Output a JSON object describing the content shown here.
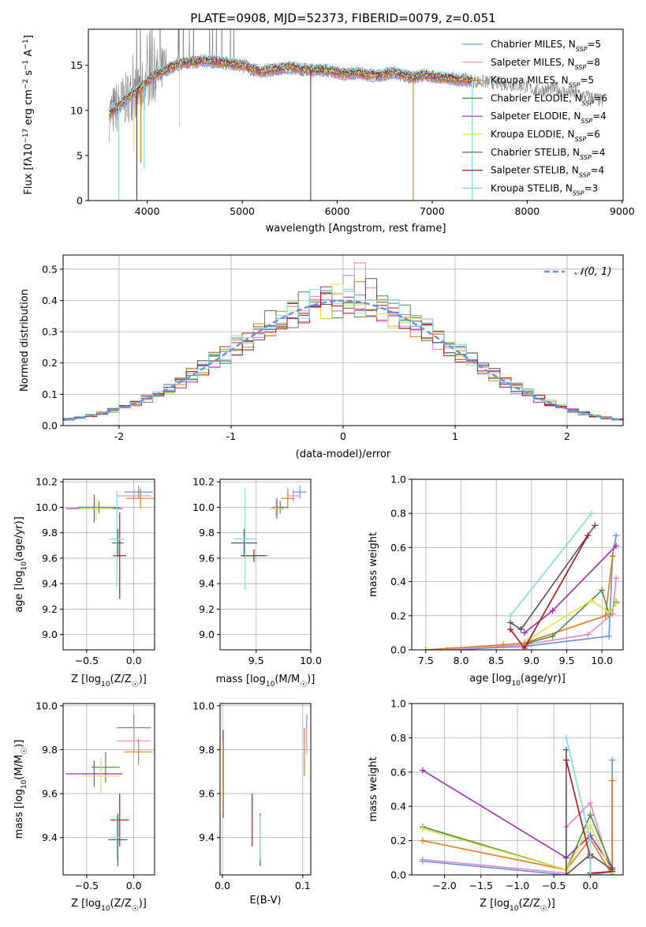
{
  "colors": {
    "Chabrier MILES": "#6a8fe0",
    "Salpeter MILES": "#e587c2",
    "Kroupa MILES": "#e07b1b",
    "Chabrier ELODIE": "#4f8a4a",
    "Salpeter ELODIE": "#9a2fb0",
    "Kroupa ELODIE": "#d9e347",
    "Chabrier STELIB": "#555555",
    "Salpeter STELIB": "#b0151c",
    "Kroupa STELIB": "#7fdde0",
    "gaussian": "#6a8fe0",
    "grid": "#b0b0b0",
    "spectrum_gray": "#808080"
  },
  "chart_data": [
    {
      "id": "spectrum",
      "type": "line",
      "title": "PLATE=0908, MJD=52373, FIBERID=0079, z=0.051",
      "xlabel": "wavelength [Angstrom, rest frame]",
      "ylabel": "Flux [fλ10⁻¹⁷ erg cm⁻² s⁻¹ A⁻¹]",
      "xlim": [
        3380,
        9010
      ],
      "ylim": [
        0,
        19
      ],
      "xticks": [
        4000,
        5000,
        6000,
        7000,
        8000,
        9000
      ],
      "yticks": [
        0,
        5,
        10,
        15
      ],
      "grid": false,
      "legend_position": "upper right",
      "legend": [
        {
          "label": "Chabrier MILES, N",
          "sub": "SSP",
          "tail": "=5",
          "series": "Chabrier MILES"
        },
        {
          "label": "Salpeter MILES, N",
          "sub": "SSP",
          "tail": "=8",
          "series": "Salpeter MILES"
        },
        {
          "label": "Kroupa MILES, N",
          "sub": "SSP",
          "tail": "=5",
          "series": "Kroupa MILES"
        },
        {
          "label": "Chabrier ELODIE, N",
          "sub": "SSP",
          "tail": "=6",
          "series": "Chabrier ELODIE"
        },
        {
          "label": "Salpeter ELODIE, N",
          "sub": "SSP",
          "tail": "=4",
          "series": "Salpeter ELODIE"
        },
        {
          "label": "Kroupa ELODIE, N",
          "sub": "SSP",
          "tail": "=6",
          "series": "Kroupa ELODIE"
        },
        {
          "label": "Chabrier STELIB, N",
          "sub": "SSP",
          "tail": "=4",
          "series": "Chabrier STELIB"
        },
        {
          "label": "Salpeter STELIB, N",
          "sub": "SSP",
          "tail": "=4",
          "series": "Salpeter STELIB"
        },
        {
          "label": "Kroupa STELIB, N",
          "sub": "SSP",
          "tail": "=3",
          "series": "Kroupa STELIB"
        }
      ],
      "continuum": {
        "x": [
          3600,
          3700,
          3800,
          3900,
          4000,
          4100,
          4200,
          4300,
          4400,
          4500,
          4600,
          4700,
          4800,
          4900,
          5000,
          5100,
          5200,
          5300,
          5400,
          5500,
          5600,
          5700,
          5800,
          5900,
          6000,
          6100,
          6200,
          6300,
          6400,
          6500,
          6600,
          6700,
          6800,
          6900,
          7000,
          7100,
          7200,
          7300,
          7400,
          7500,
          7600,
          7700,
          7800,
          7900,
          8000,
          8100,
          8200,
          8300,
          8400,
          8500,
          8600,
          8700,
          8800
        ],
        "y": [
          9.5,
          10.5,
          11.5,
          12.2,
          13.2,
          14.0,
          14.5,
          15.0,
          15.3,
          15.4,
          15.5,
          15.4,
          15.3,
          15.1,
          15.0,
          14.6,
          14.3,
          14.5,
          14.6,
          14.8,
          14.6,
          14.5,
          14.5,
          14.4,
          14.2,
          14.0,
          14.2,
          14.0,
          13.8,
          14.0,
          14.2,
          13.9,
          13.6,
          13.9,
          13.8,
          13.6,
          13.5,
          13.4,
          13.3,
          13.2,
          13.1,
          13.0,
          12.9,
          12.8,
          12.6,
          12.2,
          12.3,
          12.4,
          12.0,
          11.9,
          11.6,
          11.4,
          11.0
        ]
      },
      "model_range": [
        3600,
        7420
      ],
      "data_range": [
        3600,
        8800
      ],
      "absorption_features": [
        {
          "x": 3640,
          "y": 8.3
        },
        {
          "x": 3700,
          "y": 0
        },
        {
          "x": 3860,
          "y": 5.5
        },
        {
          "x": 3890,
          "y": 0
        },
        {
          "x": 3933,
          "y": 4.2
        },
        {
          "x": 3968,
          "y": 3.5
        },
        {
          "x": 4340,
          "y": 8.2
        },
        {
          "x": 5720,
          "y": 0
        },
        {
          "x": 6800,
          "y": 0
        },
        {
          "x": 7420,
          "y": 0
        }
      ]
    },
    {
      "id": "residuals",
      "type": "bar",
      "xlabel": "(data-model)/error",
      "ylabel": "Normed distribution",
      "xlim": [
        -2.5,
        2.5
      ],
      "ylim": [
        0,
        0.545
      ],
      "xticks": [
        -2,
        -1,
        0,
        1,
        2
      ],
      "yticks": [
        0.0,
        0.1,
        0.2,
        0.3,
        0.4,
        0.5
      ],
      "grid": true,
      "bin_width": 0.1,
      "bin_start": -2.5,
      "legend": [
        {
          "label": "𝒩(0, 1)",
          "series": "gaussian",
          "style": "dashed"
        }
      ],
      "histogram_peaks": [
        {
          "series": "Salpeter MILES",
          "x": 0.15,
          "y": 0.52
        },
        {
          "series": "Chabrier MILES",
          "x": 0.05,
          "y": 0.48
        },
        {
          "series": "Chabrier STELIB",
          "x": 0.25,
          "y": 0.47
        },
        {
          "series": "Kroupa MILES",
          "x": 0.15,
          "y": 0.46
        }
      ]
    },
    {
      "id": "age_vs_Z",
      "type": "scatter",
      "xlabel": "Z [log₁₀(Z/Z☉)]",
      "ylabel": "age  [log₁₀(age/yr)]",
      "xlim": [
        -0.75,
        0.22
      ],
      "ylim": [
        8.88,
        10.22
      ],
      "xticks": [
        -0.5,
        0.0
      ],
      "yticks": [
        9.0,
        9.2,
        9.4,
        9.6,
        9.8,
        10.0,
        10.2
      ],
      "grid": true,
      "points": [
        {
          "series": "Chabrier MILES",
          "x": 0.05,
          "xerr": 0.15,
          "y": 10.12,
          "yerr": 0.05
        },
        {
          "series": "Salpeter MILES",
          "x": 0.0,
          "xerr": 0.18,
          "y": 10.09,
          "yerr": 0.05
        },
        {
          "series": "Kroupa MILES",
          "x": 0.07,
          "xerr": 0.15,
          "y": 10.07,
          "yerr": 0.08
        },
        {
          "series": "Chabrier ELODIE",
          "x": -0.37,
          "xerr": 0.22,
          "y": 10.0,
          "yerr": 0.05
        },
        {
          "series": "Salpeter ELODIE",
          "x": -0.42,
          "xerr": 0.3,
          "y": 9.99,
          "yerr": 0.11
        },
        {
          "series": "Kroupa ELODIE",
          "x": -0.4,
          "xerr": 0.18,
          "y": 9.99,
          "yerr": 0.09
        },
        {
          "series": "Chabrier STELIB",
          "x": -0.17,
          "xerr": 0.06,
          "y": 9.72,
          "yerr": 0.11
        },
        {
          "series": "Salpeter STELIB",
          "x": -0.15,
          "xerr": 0.07,
          "y": 9.62,
          "yerr": 0.34
        },
        {
          "series": "Kroupa STELIB",
          "x": -0.18,
          "xerr": 0.08,
          "y": 9.75,
          "yerr": 0.38
        }
      ]
    },
    {
      "id": "age_vs_mass",
      "type": "scatter",
      "xlabel": "mass [log₁₀(M/M☉)]",
      "ylabel": "",
      "xlim": [
        9.17,
        10.0
      ],
      "ylim": [
        8.88,
        10.22
      ],
      "xticks": [
        9.5,
        10.0
      ],
      "yticks": [
        9.0,
        9.2,
        9.4,
        9.6,
        9.8,
        10.0,
        10.2
      ],
      "grid": true,
      "points": [
        {
          "series": "Chabrier MILES",
          "x": 9.9,
          "xerr": 0.06,
          "y": 10.12,
          "yerr": 0.05
        },
        {
          "series": "Salpeter MILES",
          "x": 9.84,
          "xerr": 0.06,
          "y": 10.09,
          "yerr": 0.05
        },
        {
          "series": "Kroupa MILES",
          "x": 9.79,
          "xerr": 0.06,
          "y": 10.07,
          "yerr": 0.08
        },
        {
          "series": "Chabrier ELODIE",
          "x": 9.72,
          "xerr": 0.07,
          "y": 10.0,
          "yerr": 0.05
        },
        {
          "series": "Salpeter ELODIE",
          "x": 9.69,
          "xerr": 0.06,
          "y": 9.99,
          "yerr": 0.08
        },
        {
          "series": "Kroupa ELODIE",
          "x": 9.68,
          "xerr": 0.06,
          "y": 9.99,
          "yerr": 0.06
        },
        {
          "series": "Chabrier STELIB",
          "x": 9.39,
          "xerr": 0.12,
          "y": 9.72,
          "yerr": 0.11
        },
        {
          "series": "Salpeter STELIB",
          "x": 9.48,
          "xerr": 0.12,
          "y": 9.62,
          "yerr": 0.05
        },
        {
          "series": "Kroupa STELIB",
          "x": 9.4,
          "xerr": 0.1,
          "y": 9.75,
          "yerr": 0.4
        }
      ]
    },
    {
      "id": "weight_vs_age",
      "type": "line",
      "xlabel": "age  [log₁₀(age/yr)]",
      "ylabel": "mass weight",
      "xlim": [
        7.3,
        10.3
      ],
      "ylim": [
        0,
        1.0
      ],
      "xticks": [
        7.5,
        8.0,
        8.5,
        9.0,
        9.5,
        10.0
      ],
      "yticks": [
        0.0,
        0.2,
        0.4,
        0.6,
        0.8,
        1.0
      ],
      "grid": true,
      "series": [
        {
          "name": "Chabrier MILES",
          "x": [
            7.8,
            8.9,
            10.1,
            10.15,
            10.2
          ],
          "y": [
            0.0,
            0.02,
            0.08,
            0.55,
            0.67
          ]
        },
        {
          "name": "Salpeter MILES",
          "x": [
            7.8,
            8.9,
            9.8,
            10.15,
            10.2
          ],
          "y": [
            0.0,
            0.03,
            0.09,
            0.21,
            0.42
          ]
        },
        {
          "name": "Kroupa MILES",
          "x": [
            7.5,
            8.6,
            8.9,
            10.05,
            10.15
          ],
          "y": [
            0.0,
            0.03,
            0.04,
            0.2,
            0.55
          ]
        },
        {
          "name": "Chabrier ELODIE",
          "x": [
            8.95,
            9.3,
            10.0,
            10.1,
            10.2
          ],
          "y": [
            0.04,
            0.08,
            0.35,
            0.21,
            0.28
          ]
        },
        {
          "name": "Salpeter ELODIE",
          "x": [
            8.9,
            9.3,
            10.2
          ],
          "y": [
            0.1,
            0.23,
            0.61
          ]
        },
        {
          "name": "Kroupa ELODIE",
          "x": [
            8.95,
            9.85,
            10.1,
            10.2
          ],
          "y": [
            0.06,
            0.29,
            0.22,
            0.27
          ]
        },
        {
          "name": "Chabrier STELIB",
          "x": [
            8.7,
            8.85,
            9.9
          ],
          "y": [
            0.16,
            0.12,
            0.73
          ]
        },
        {
          "name": "Salpeter STELIB",
          "x": [
            8.7,
            8.9,
            9.8
          ],
          "y": [
            0.12,
            0.01,
            0.67
          ]
        },
        {
          "name": "Kroupa STELIB",
          "x": [
            8.7,
            9.85
          ],
          "y": [
            0.2,
            0.8
          ]
        }
      ]
    },
    {
      "id": "mass_vs_Z",
      "type": "scatter",
      "xlabel": "Z [log₁₀(Z/Z☉)]",
      "ylabel": "mass [log₁₀(M/M☉)]",
      "xlim": [
        -0.75,
        0.22
      ],
      "ylim": [
        9.23,
        10.01
      ],
      "xticks": [
        -0.5,
        0.0
      ],
      "yticks": [
        9.4,
        9.6,
        9.8,
        10.0
      ],
      "grid": true,
      "points": [
        {
          "series": "Chabrier MILES",
          "x": 0.0,
          "xerr": 0.18,
          "y": 9.9,
          "yerr": 0.06
        },
        {
          "series": "Salpeter MILES",
          "x": 0.0,
          "xerr": 0.18,
          "y": 9.84,
          "yerr": 0.06
        },
        {
          "series": "Kroupa MILES",
          "x": 0.05,
          "xerr": 0.15,
          "y": 9.79,
          "yerr": 0.06
        },
        {
          "series": "Chabrier ELODIE",
          "x": -0.3,
          "xerr": 0.15,
          "y": 9.72,
          "yerr": 0.07
        },
        {
          "series": "Salpeter ELODIE",
          "x": -0.42,
          "xerr": 0.3,
          "y": 9.69,
          "yerr": 0.06
        },
        {
          "series": "Kroupa ELODIE",
          "x": -0.35,
          "xerr": 0.2,
          "y": 9.68,
          "yerr": 0.08
        },
        {
          "series": "Chabrier STELIB",
          "x": -0.17,
          "xerr": 0.1,
          "y": 9.39,
          "yerr": 0.12
        },
        {
          "series": "Salpeter STELIB",
          "x": -0.15,
          "xerr": 0.1,
          "y": 9.48,
          "yerr": 0.12
        },
        {
          "series": "Kroupa STELIB",
          "x": -0.18,
          "xerr": 0.06,
          "y": 9.4,
          "yerr": 0.1
        }
      ]
    },
    {
      "id": "mass_vs_EBV",
      "type": "scatter",
      "xlabel": "E(B-V)",
      "ylabel": "",
      "xlim": [
        -0.003,
        0.11
      ],
      "ylim": [
        9.23,
        10.01
      ],
      "xticks": [
        0.0,
        0.1
      ],
      "yticks": [
        9.4,
        9.6,
        9.8,
        10.0
      ],
      "grid": true,
      "points": [
        {
          "series": "Chabrier MILES",
          "x": 0.105,
          "y": 9.9,
          "yerr": 0.06
        },
        {
          "series": "Salpeter MILES",
          "x": 0.105,
          "y": 9.84,
          "yerr": 0.06
        },
        {
          "series": "Kroupa MILES",
          "x": 0.102,
          "y": 9.79,
          "yerr": 0.11
        },
        {
          "series": "Chabrier ELODIE",
          "x": 0.0,
          "y": 9.72,
          "yerr": 0.07
        },
        {
          "series": "Salpeter ELODIE",
          "x": 0.001,
          "y": 9.69,
          "yerr": 0.2
        },
        {
          "series": "Kroupa ELODIE",
          "x": 0.0,
          "y": 9.68,
          "yerr": 0.17
        },
        {
          "series": "Chabrier STELIB",
          "x": 0.047,
          "y": 9.39,
          "yerr": 0.12
        },
        {
          "series": "Salpeter STELIB",
          "x": 0.037,
          "y": 9.48,
          "yerr": 0.12
        },
        {
          "series": "Kroupa STELIB",
          "x": 0.047,
          "y": 9.4,
          "yerr": 0.1
        }
      ]
    },
    {
      "id": "weight_vs_Z",
      "type": "line",
      "xlabel": "Z [log₁₀(Z/Z☉)]",
      "ylabel": "mass weight",
      "xlim": [
        -2.45,
        0.45
      ],
      "ylim": [
        0,
        1.0
      ],
      "xticks": [
        -2.0,
        -1.5,
        -1.0,
        -0.5,
        0.0
      ],
      "yticks": [
        0.0,
        0.2,
        0.4,
        0.6,
        0.8,
        1.0
      ],
      "grid": true,
      "series": [
        {
          "name": "Chabrier MILES",
          "x": [
            -2.3,
            -0.33,
            0.0,
            0.3,
            0.3
          ],
          "y": [
            0.08,
            0.0,
            0.0,
            0.02,
            0.67
          ]
        },
        {
          "name": "Salpeter MILES",
          "x": [
            -2.3,
            -0.33,
            -0.33,
            0.0,
            0.3
          ],
          "y": [
            0.09,
            0.01,
            0.28,
            0.42,
            0.0
          ]
        },
        {
          "name": "Kroupa MILES",
          "x": [
            -2.3,
            -0.33,
            0.0,
            0.3,
            0.3
          ],
          "y": [
            0.2,
            0.03,
            0.21,
            0.0,
            0.55
          ]
        },
        {
          "name": "Chabrier ELODIE",
          "x": [
            -2.3,
            -0.33,
            0.0,
            0.3
          ],
          "y": [
            0.28,
            0.03,
            0.35,
            0.04
          ]
        },
        {
          "name": "Salpeter ELODIE",
          "x": [
            -2.3,
            -0.33,
            0.0,
            0.3
          ],
          "y": [
            0.61,
            0.1,
            0.23,
            0.04
          ]
        },
        {
          "name": "Kroupa ELODIE",
          "x": [
            -2.3,
            -0.33,
            0.0,
            0.3
          ],
          "y": [
            0.27,
            0.03,
            0.29,
            0.01
          ]
        },
        {
          "name": "Chabrier STELIB",
          "x": [
            -0.33,
            -0.33,
            0.0,
            0.0,
            0.3
          ],
          "y": [
            0.73,
            0.0,
            0.12,
            0.12,
            0.03
          ]
        },
        {
          "name": "Salpeter STELIB",
          "x": [
            -0.33,
            0.0,
            0.0,
            0.3
          ],
          "y": [
            0.67,
            0.1,
            0.01,
            0.02
          ]
        },
        {
          "name": "Kroupa STELIB",
          "x": [
            -0.33,
            0.0,
            0.0,
            0.3
          ],
          "y": [
            0.8,
            0.2,
            0.0,
            0.0
          ]
        }
      ]
    }
  ]
}
